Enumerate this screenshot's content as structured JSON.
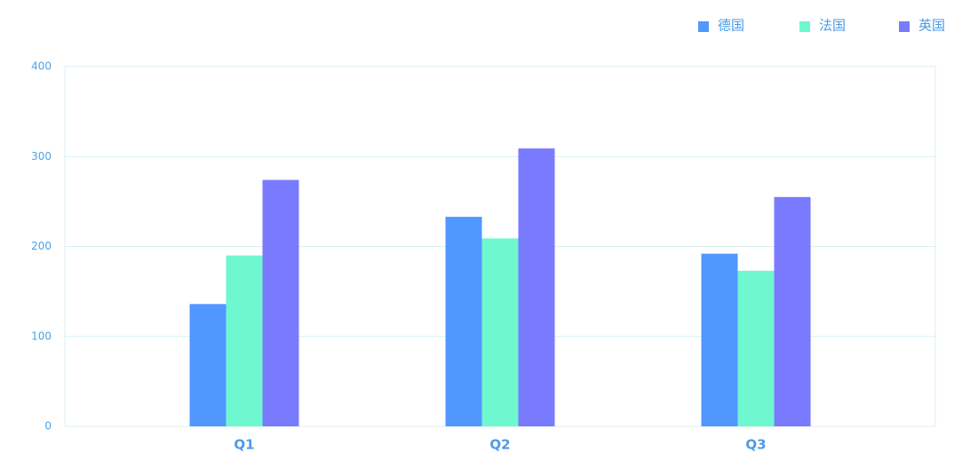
{
  "chart_data": {
    "type": "bar",
    "categories": [
      "Q1",
      "Q2",
      "Q3"
    ],
    "series": [
      {
        "name": "德国",
        "color": "#5097ff",
        "values": [
          136,
          233,
          192
        ]
      },
      {
        "name": "法国",
        "color": "#6ff8d0",
        "values": [
          190,
          209,
          173
        ]
      },
      {
        "name": "英国",
        "color": "#7a7aff",
        "values": [
          274,
          309,
          255
        ]
      }
    ],
    "ylim": [
      0,
      400
    ],
    "yticks": [
      0,
      100,
      200,
      300,
      400
    ],
    "grid": true,
    "legend": "top-right"
  }
}
